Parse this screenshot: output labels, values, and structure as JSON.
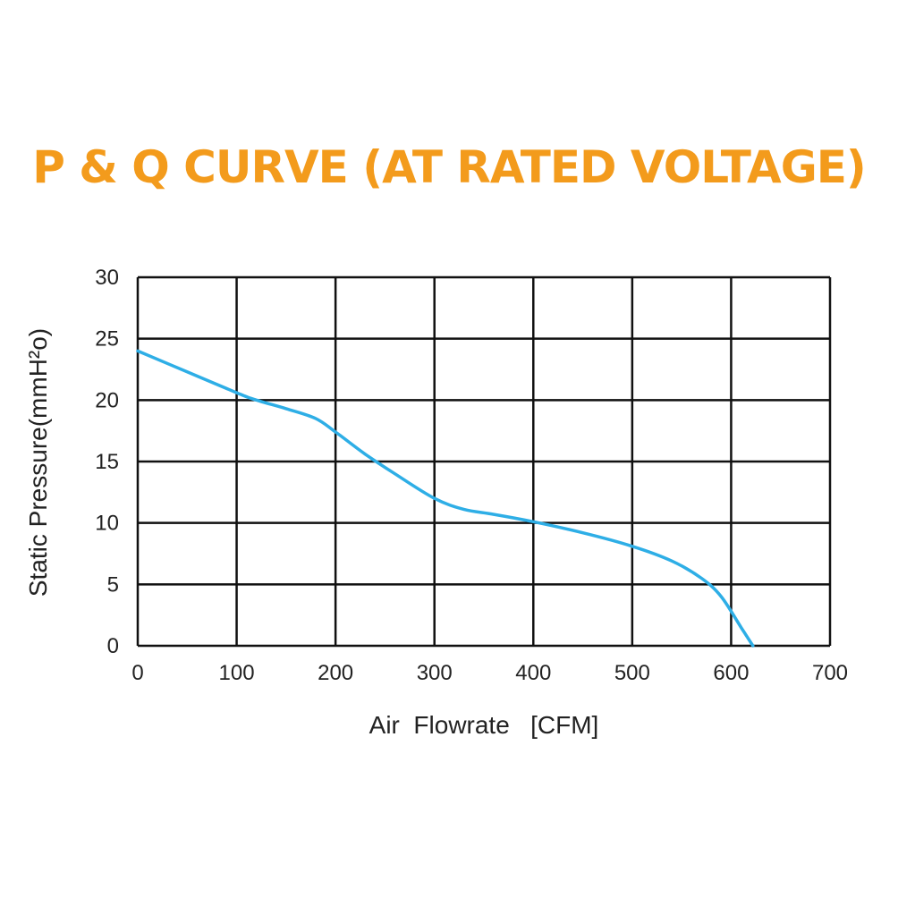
{
  "title": "P & Q CURVE (AT RATED VOLTAGE)",
  "colors": {
    "title": "#f39b1c",
    "curve": "#2eaee6",
    "grid": "#111111"
  },
  "chart_data": {
    "type": "line",
    "title": "P & Q CURVE (AT RATED VOLTAGE)",
    "xlabel": "Air  Flowrate   [CFM]",
    "ylabel": "Static Pressure(mmH²o)",
    "xlim": [
      0,
      700
    ],
    "ylim": [
      0,
      30
    ],
    "x_ticks": [
      "0",
      "100",
      "200",
      "300",
      "400",
      "500",
      "600",
      "700"
    ],
    "y_ticks": [
      "0",
      "5",
      "10",
      "15",
      "20",
      "25",
      "30"
    ],
    "grid": true,
    "series": [
      {
        "x": [
          0,
          50,
          100,
          120,
          150,
          180,
          200,
          230,
          260,
          300,
          330,
          360,
          400,
          450,
          500,
          540,
          570,
          590,
          610,
          622
        ],
        "y": [
          24,
          22.3,
          20.6,
          20,
          19.3,
          18.5,
          17.4,
          15.6,
          14,
          12,
          11.1,
          10.7,
          10.1,
          9.2,
          8.1,
          6.9,
          5.5,
          4,
          1.5,
          0
        ]
      }
    ]
  }
}
